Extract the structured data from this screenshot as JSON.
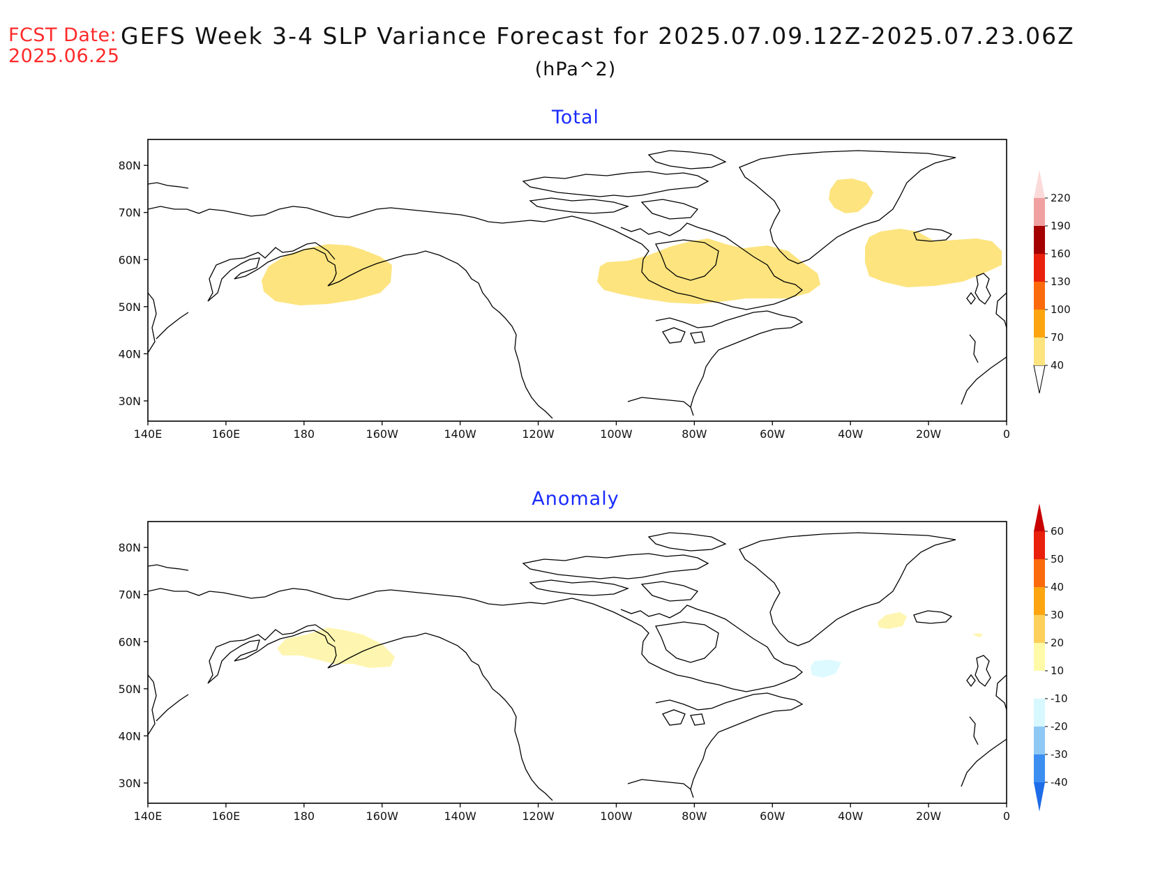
{
  "header": {
    "fcst_label": "FCST Date:",
    "fcst_date": "2025.06.25",
    "title": "GEFS Week 3-4 SLP Variance Forecast for 2025.07.09.12Z-2025.07.23.06Z",
    "units": "(hPa^2)"
  },
  "map": {
    "lon_ticks": [
      "140E",
      "160E",
      "180",
      "160W",
      "140W",
      "120W",
      "100W",
      "80W",
      "60W",
      "40W",
      "20W",
      "0"
    ],
    "lat_ticks": [
      "30N",
      "40N",
      "50N",
      "60N",
      "70N",
      "80N"
    ]
  },
  "panels": [
    {
      "title": "Total",
      "colorbar": {
        "levels": [
          "40",
          "70",
          "100",
          "130",
          "160",
          "190",
          "220"
        ],
        "colors": [
          "#fde47f",
          "#fca510",
          "#fb6a0c",
          "#e8200c",
          "#a50000",
          "#f0a0a0",
          "#fbdada"
        ]
      }
    },
    {
      "title": "Anomaly",
      "colorbar": {
        "levels": [
          "-40",
          "-30",
          "-20",
          "-10",
          "10",
          "20",
          "30",
          "40",
          "50",
          "60"
        ],
        "colors": [
          "#1e6ce8",
          "#3c8ff0",
          "#8ec8f5",
          "#d8f8ff",
          "#ffffff",
          "#fefaa8",
          "#fcd05a",
          "#fca510",
          "#fb6a0c",
          "#e8200c",
          "#c80000"
        ]
      }
    }
  ]
}
